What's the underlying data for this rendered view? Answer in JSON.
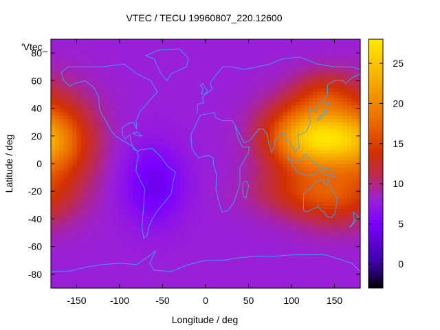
{
  "chart_data": {
    "type": "heatmap",
    "title": "VTEC / TECU 19960807_220.12600",
    "xlabel": "Longitude / deg",
    "ylabel": "Latitude / deg",
    "series_label": "'Vtec_",
    "xlim": [
      -180,
      180
    ],
    "ylim": [
      -90,
      90
    ],
    "xticks": [
      -150,
      -100,
      -50,
      0,
      50,
      100,
      150
    ],
    "yticks": [
      -80,
      -60,
      -40,
      -20,
      0,
      20,
      40,
      60,
      80
    ],
    "colorbar": {
      "range": [
        -3,
        28
      ],
      "ticks": [
        0,
        5,
        10,
        15,
        20,
        25
      ],
      "colors": [
        "#000000",
        "#3a00a0",
        "#7a00ff",
        "#9a20d8",
        "#bb2a50",
        "#d23000",
        "#e86000",
        "#f4a000",
        "#ffe800"
      ],
      "color_stops": [
        -3,
        0,
        5,
        8,
        11,
        14,
        17,
        22,
        28
      ]
    },
    "background_level": 8,
    "field_features": [
      {
        "lon": 145,
        "lat": 18,
        "peak": 22,
        "sigma_lon": 35,
        "sigma_lat": 15
      },
      {
        "lon": 105,
        "lat": 20,
        "peak": 16,
        "sigma_lon": 30,
        "sigma_lat": 18
      },
      {
        "lon": -170,
        "lat": 15,
        "peak": 15,
        "sigma_lon": 30,
        "sigma_lat": 25
      },
      {
        "lon": 150,
        "lat": -25,
        "peak": 13,
        "sigma_lon": 35,
        "sigma_lat": 15
      },
      {
        "lon": 110,
        "lat": -20,
        "peak": 12,
        "sigma_lon": 40,
        "sigma_lat": 12
      },
      {
        "lon": 140,
        "lat": 50,
        "peak": 13,
        "sigma_lon": 25,
        "sigma_lat": 12
      },
      {
        "lon": -60,
        "lat": -15,
        "peak": 4,
        "sigma_lon": 25,
        "sigma_lat": 20
      }
    ]
  }
}
